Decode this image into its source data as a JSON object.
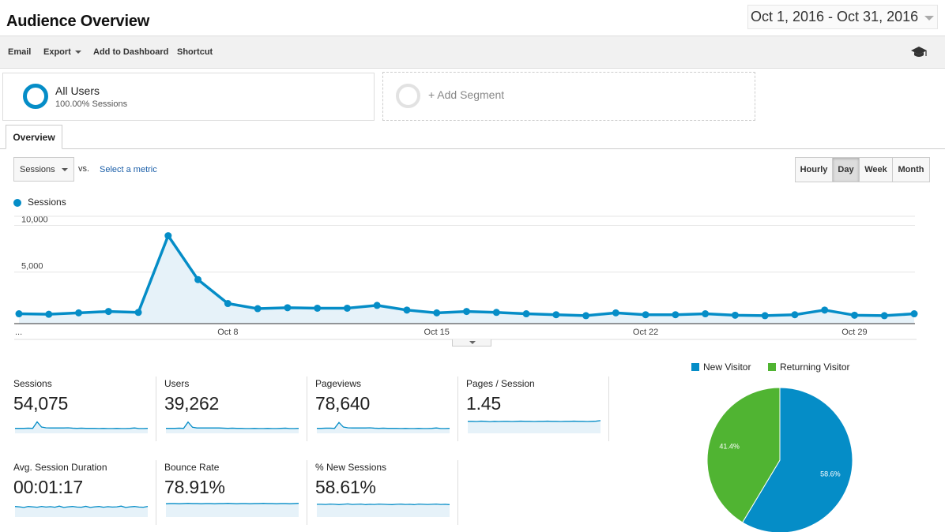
{
  "header": {
    "title": "Audience Overview",
    "date_range": "Oct 1, 2016 - Oct 31, 2016"
  },
  "toolbar": {
    "email": "Email",
    "export": "Export",
    "add_to_dashboard": "Add to Dashboard",
    "shortcut": "Shortcut",
    "help_icon": "graduation-cap-icon"
  },
  "segments": {
    "active": {
      "name": "All Users",
      "sub": "100.00% Sessions"
    },
    "add_label": "+ Add Segment"
  },
  "tabs": {
    "overview": "Overview"
  },
  "metric_picker": {
    "selected": "Sessions",
    "vs": "vs.",
    "select_metric": "Select a metric"
  },
  "granularity": {
    "buttons": [
      "Hourly",
      "Day",
      "Week",
      "Month"
    ],
    "active": "Day"
  },
  "colors": {
    "accent": "#058dc7",
    "new_visitor": "#058dc7",
    "returning_visitor": "#50b432"
  },
  "chart_data": [
    {
      "type": "line",
      "series": [
        {
          "name": "Sessions",
          "values": [
            1050,
            1000,
            1150,
            1300,
            1200,
            9400,
            4700,
            2150,
            1600,
            1700,
            1650,
            1650,
            1950,
            1450,
            1150,
            1300,
            1200,
            1050,
            950,
            850,
            1150,
            950,
            950,
            1050,
            900,
            850,
            950,
            1450,
            900,
            850,
            1050
          ]
        }
      ],
      "x_tick_labels": [
        "...",
        "Oct 8",
        "Oct 15",
        "Oct 22",
        "Oct 29"
      ],
      "y_ticks": [
        "10,000",
        "5,000"
      ],
      "ylim": [
        0,
        10000
      ],
      "grid": true
    },
    {
      "type": "pie",
      "categories": [
        "New Visitor",
        "Returning Visitor"
      ],
      "values": [
        58.6,
        41.4
      ],
      "slice_labels": [
        "58.6%",
        "41.4%"
      ],
      "legend": "top"
    }
  ],
  "stats": [
    {
      "label": "Sessions",
      "value": "54,075",
      "spark": [
        10,
        10,
        10,
        11,
        10,
        45,
        17,
        13,
        12,
        12,
        12,
        12,
        13,
        11,
        10,
        11,
        10,
        10,
        10,
        9,
        10,
        9,
        9,
        10,
        9,
        9,
        10,
        12,
        9,
        9,
        10
      ]
    },
    {
      "label": "Users",
      "value": "39,262",
      "spark": [
        10,
        10,
        10,
        11,
        10,
        44,
        16,
        12,
        12,
        12,
        12,
        12,
        12,
        11,
        10,
        11,
        10,
        10,
        9,
        9,
        10,
        9,
        9,
        10,
        9,
        9,
        10,
        11,
        9,
        9,
        10
      ]
    },
    {
      "label": "Pageviews",
      "value": "78,640",
      "spark": [
        10,
        10,
        11,
        11,
        10,
        42,
        17,
        13,
        12,
        12,
        12,
        12,
        13,
        11,
        10,
        11,
        10,
        10,
        10,
        9,
        10,
        9,
        9,
        10,
        9,
        9,
        10,
        12,
        9,
        9,
        10
      ]
    },
    {
      "label": "Pages / Session",
      "value": "1.45",
      "spark": [
        48,
        48,
        47,
        49,
        48,
        46,
        48,
        47,
        48,
        48,
        47,
        48,
        49,
        48,
        48,
        47,
        48,
        48,
        49,
        48,
        48,
        47,
        48,
        48,
        49,
        48,
        48,
        47,
        48,
        49,
        52
      ]
    },
    {
      "label": "Avg. Session Duration",
      "value": "00:01:17",
      "spark": [
        40,
        38,
        35,
        40,
        38,
        36,
        40,
        37,
        39,
        36,
        42,
        35,
        38,
        40,
        37,
        36,
        41,
        35,
        38,
        40,
        36,
        39,
        37,
        38,
        42,
        35,
        38,
        40,
        37,
        36,
        40
      ]
    },
    {
      "label": "Bounce Rate",
      "value": "78.91%",
      "spark": [
        55,
        56,
        56,
        55,
        56,
        57,
        56,
        56,
        55,
        56,
        56,
        55,
        56,
        56,
        57,
        56,
        55,
        56,
        56,
        55,
        56,
        56,
        57,
        56,
        56,
        55,
        56,
        56,
        55,
        56,
        57
      ]
    },
    {
      "label": "% New Sessions",
      "value": "58.61%",
      "spark": [
        52,
        52,
        51,
        53,
        52,
        50,
        52,
        54,
        51,
        52,
        53,
        50,
        52,
        51,
        53,
        52,
        51,
        50,
        52,
        53,
        51,
        52,
        50,
        53,
        52,
        51,
        52,
        53,
        51,
        52,
        50
      ]
    }
  ],
  "pie_legend": {
    "new": "New Visitor",
    "returning": "Returning Visitor"
  }
}
